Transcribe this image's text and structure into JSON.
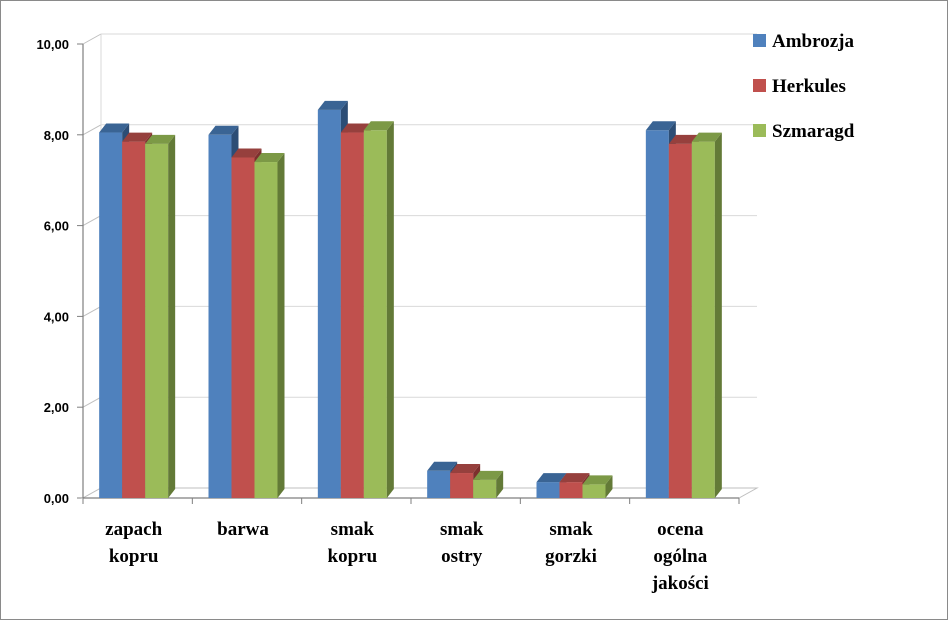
{
  "chart_data": {
    "type": "bar",
    "title": "",
    "xlabel": "",
    "ylabel": "",
    "ylim": [
      0,
      10
    ],
    "yticks": [
      "0,00",
      "2,00",
      "4,00",
      "6,00",
      "8,00",
      "10,00"
    ],
    "categories": [
      [
        "zapach",
        "kopru"
      ],
      [
        "barwa"
      ],
      [
        "smak",
        "kopru"
      ],
      [
        "smak",
        "ostry"
      ],
      [
        "smak",
        "gorzki"
      ],
      [
        "ocena",
        "ogólna",
        "jakości"
      ]
    ],
    "series": [
      {
        "name": "Ambrozja",
        "color": "#4f81bd",
        "side": "#2c4d75",
        "top": "#3a6494",
        "values": [
          8.05,
          8.0,
          8.55,
          0.6,
          0.35,
          8.1
        ]
      },
      {
        "name": "Herkules",
        "color": "#c0504d",
        "side": "#7d2f2d",
        "top": "#96403d",
        "values": [
          7.85,
          7.5,
          8.05,
          0.55,
          0.35,
          7.8
        ]
      },
      {
        "name": "Szmaragd",
        "color": "#9bbb59",
        "side": "#637a37",
        "top": "#7c9946",
        "values": [
          7.8,
          7.4,
          8.1,
          0.4,
          0.3,
          7.85
        ]
      }
    ],
    "grid": true,
    "legend": "top-right"
  }
}
